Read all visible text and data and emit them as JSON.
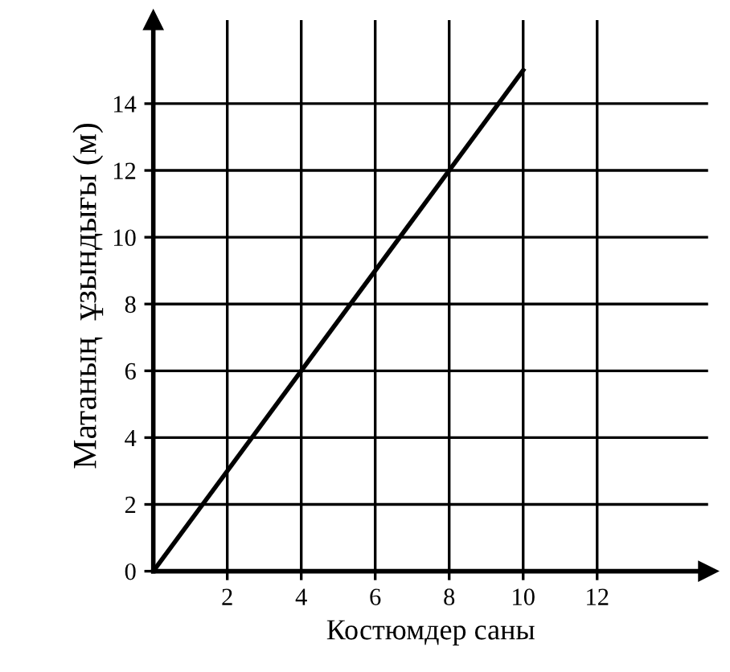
{
  "chart_data": {
    "type": "line",
    "xlabel": "Костюмдер саны",
    "ylabel": "Матаның  ұзындығы (м)",
    "x": [
      0,
      10
    ],
    "series": [
      {
        "color": "#000000",
        "values": [
          0,
          15
        ]
      }
    ],
    "xlim": [
      0,
      15
    ],
    "ylim": [
      0,
      16.5
    ],
    "xticks": [
      2,
      4,
      6,
      8,
      10,
      12
    ],
    "yticks": [
      0,
      2,
      4,
      6,
      8,
      10,
      12,
      14
    ],
    "grid": true,
    "marker": "none",
    "line_style": "solid"
  }
}
